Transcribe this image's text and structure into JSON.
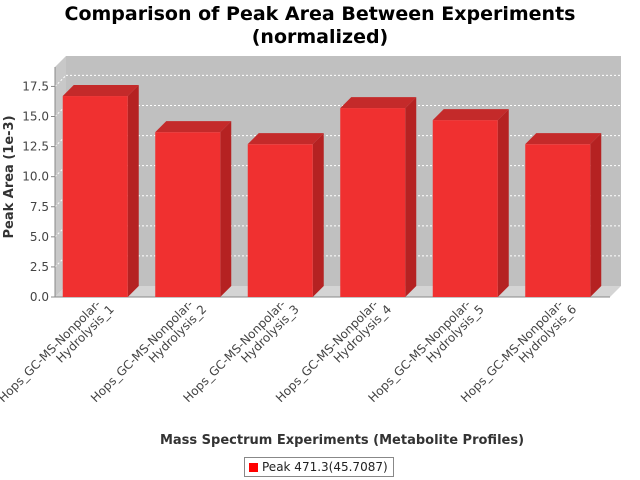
{
  "chart_data": {
    "type": "bar",
    "title_lines": [
      "Comparison of Peak Area Between Experiments",
      "(normalized)"
    ],
    "xlabel": "Mass Spectrum Experiments (Metabolite Profiles)",
    "ylabel": "Peak Area (1e-3)",
    "categories": [
      [
        "Hops_GC-MS-Nonpolar-",
        "Hydrolysis_1"
      ],
      [
        "Hops_GC-MS-Nonpolar-",
        "Hydrolysis_2"
      ],
      [
        "Hops_GC-MS-Nonpolar-",
        "Hydrolysis_3"
      ],
      [
        "Hops_GC-MS-Nonpolar-",
        "Hydrolysis_4"
      ],
      [
        "Hops_GC-MS-Nonpolar-",
        "Hydrolysis_5"
      ],
      [
        "Hops_GC-MS-Nonpolar-",
        "Hydrolysis_6"
      ]
    ],
    "series": [
      {
        "name": "Peak 471.3(45.7087)",
        "values": [
          16.7,
          13.7,
          12.7,
          15.7,
          14.7,
          12.7
        ]
      }
    ],
    "ylim": [
      0,
      18.2
    ],
    "yticks": [
      "0.0",
      "2.5",
      "5.0",
      "7.5",
      "10.0",
      "12.5",
      "15.0",
      "17.5"
    ],
    "grid": true,
    "legend_position": "bottom",
    "colors": {
      "bar": "#ff0000",
      "plot_background": "#c0c0c0",
      "gridline": "#ffffff"
    }
  }
}
